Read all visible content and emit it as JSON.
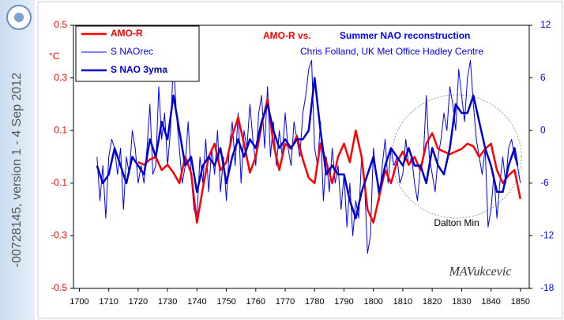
{
  "chart_data": {
    "type": "line",
    "title_parts": [
      "AMO-R  vs.",
      "Summer NAO reconstruction"
    ],
    "subtitle": "Chris Folland, UK Met Office Hadley Centre",
    "y_label": "°C",
    "annotations": [
      "Dalton Min",
      "MAVukcevic"
    ],
    "side_text": "-00728145, version 1 - 4 Sep 2012",
    "xlim": [
      1698,
      1853
    ],
    "xticks": [
      1700,
      1710,
      1720,
      1730,
      1740,
      1750,
      1760,
      1770,
      1780,
      1790,
      1800,
      1810,
      1820,
      1830,
      1840,
      1850
    ],
    "ylim": [
      -0.5,
      0.5
    ],
    "yticks": [
      -0.5,
      -0.3,
      -0.1,
      0.1,
      0.3,
      0.5
    ],
    "y2lim": [
      -18,
      12
    ],
    "y2ticks": [
      -18,
      -12,
      -6,
      0,
      6,
      12
    ],
    "series": [
      {
        "name": "AMO-R",
        "color": "#ff0000",
        "x": [
          1720,
          1722,
          1724,
          1726,
          1728,
          1730,
          1732,
          1734,
          1736,
          1738,
          1740,
          1742,
          1744,
          1746,
          1748,
          1750,
          1752,
          1754,
          1756,
          1758,
          1760,
          1762,
          1764,
          1766,
          1768,
          1770,
          1772,
          1774,
          1776,
          1778,
          1780,
          1782,
          1784,
          1786,
          1788,
          1790,
          1792,
          1794,
          1796,
          1798,
          1800,
          1802,
          1804,
          1806,
          1808,
          1810,
          1812,
          1814,
          1816,
          1818,
          1820,
          1822,
          1824,
          1826,
          1828,
          1830,
          1832,
          1834,
          1836,
          1838,
          1840,
          1842,
          1844,
          1846,
          1848,
          1850
        ],
        "values": [
          -0.02,
          -0.03,
          -0.01,
          0.0,
          -0.05,
          -0.03,
          -0.06,
          -0.1,
          0.0,
          -0.06,
          -0.25,
          -0.12,
          0.0,
          0.05,
          -0.05,
          -0.02,
          0.08,
          0.15,
          0.05,
          -0.06,
          0.0,
          0.12,
          0.22,
          0.05,
          -0.05,
          0.05,
          0.03,
          0.08,
          -0.01,
          -0.08,
          -0.1,
          0.05,
          -0.02,
          -0.1,
          0.0,
          0.05,
          -0.02,
          0.1,
          0.0,
          -0.2,
          -0.25,
          -0.15,
          -0.05,
          -0.1,
          -0.02,
          0.02,
          -0.03,
          0.0,
          -0.05,
          0.05,
          0.09,
          0.03,
          0.02,
          0.01,
          0.02,
          0.03,
          0.05,
          0.04,
          0.0,
          0.03,
          0.05,
          -0.05,
          -0.1,
          -0.07,
          -0.05,
          -0.16
        ]
      },
      {
        "name": "S NAOrec",
        "color": "#0000ff",
        "axis": "y2",
        "x": [
          1706,
          1707,
          1708,
          1709,
          1710,
          1711,
          1712,
          1713,
          1714,
          1715,
          1716,
          1717,
          1718,
          1719,
          1720,
          1721,
          1722,
          1723,
          1724,
          1725,
          1726,
          1727,
          1728,
          1729,
          1730,
          1731,
          1732,
          1733,
          1734,
          1735,
          1736,
          1737,
          1738,
          1739,
          1740,
          1741,
          1742,
          1743,
          1744,
          1745,
          1746,
          1747,
          1748,
          1749,
          1750,
          1751,
          1752,
          1753,
          1754,
          1755,
          1756,
          1757,
          1758,
          1759,
          1760,
          1761,
          1762,
          1763,
          1764,
          1765,
          1766,
          1767,
          1768,
          1769,
          1770,
          1771,
          1772,
          1773,
          1774,
          1775,
          1776,
          1777,
          1778,
          1779,
          1780,
          1781,
          1782,
          1783,
          1784,
          1785,
          1786,
          1787,
          1788,
          1789,
          1790,
          1791,
          1792,
          1793,
          1794,
          1795,
          1796,
          1797,
          1798,
          1799,
          1800,
          1801,
          1802,
          1803,
          1804,
          1805,
          1806,
          1807,
          1808,
          1809,
          1810,
          1811,
          1812,
          1813,
          1814,
          1815,
          1816,
          1817,
          1818,
          1819,
          1820,
          1821,
          1822,
          1823,
          1824,
          1825,
          1826,
          1827,
          1828,
          1829,
          1830,
          1831,
          1832,
          1833,
          1834,
          1835,
          1836,
          1837,
          1838,
          1839,
          1840,
          1841,
          1842,
          1843,
          1844,
          1845,
          1846,
          1847,
          1848,
          1849,
          1850
        ],
        "values": [
          -3,
          -8,
          -4,
          -10,
          -3,
          -1,
          -2,
          -5,
          -2,
          -9,
          -3,
          -5,
          0,
          -2,
          -6,
          -4,
          -6,
          -2,
          3,
          -5,
          -4,
          5,
          -1,
          2,
          -4,
          0,
          8,
          2,
          -2,
          -6,
          -4,
          1,
          -5,
          -9,
          -10,
          -3,
          -6,
          -1,
          -7,
          -2,
          -5,
          0,
          -7,
          -3,
          -8,
          -2,
          1,
          -4,
          2,
          -6,
          0,
          -2,
          3,
          -1,
          -4,
          2,
          4,
          -2,
          5,
          -3,
          1,
          -4,
          0,
          -3,
          2,
          -2,
          -4,
          1,
          -1,
          -3,
          2,
          4,
          7,
          8,
          -2,
          -4,
          1,
          -8,
          -3,
          -7,
          -2,
          -6,
          -4,
          -9,
          -5,
          -11,
          -6,
          -12,
          -8,
          -10,
          -3,
          -6,
          -14,
          -12,
          -2,
          -5,
          -8,
          -4,
          -1,
          -6,
          -2,
          -4,
          -3,
          -6,
          -5,
          -1,
          -4,
          -3,
          -6,
          -8,
          -4,
          -3,
          4,
          -3,
          -5,
          -7,
          -3,
          -1,
          2,
          0,
          5,
          3,
          0,
          7,
          4,
          1,
          6,
          8,
          3,
          -1,
          -3,
          -5,
          -2,
          -11,
          -9,
          -5,
          -10,
          -6,
          -3,
          -6,
          -2,
          -1,
          -3,
          -4,
          -6
        ]
      },
      {
        "name": "S NAO 3yma",
        "color": "#0000cc",
        "axis": "y2",
        "x": [
          1706,
          1708,
          1710,
          1712,
          1714,
          1716,
          1718,
          1720,
          1722,
          1724,
          1726,
          1728,
          1730,
          1732,
          1734,
          1736,
          1738,
          1740,
          1742,
          1744,
          1746,
          1748,
          1750,
          1752,
          1754,
          1756,
          1758,
          1760,
          1762,
          1764,
          1766,
          1768,
          1770,
          1772,
          1774,
          1776,
          1778,
          1780,
          1782,
          1784,
          1786,
          1788,
          1790,
          1792,
          1794,
          1796,
          1798,
          1800,
          1802,
          1804,
          1806,
          1808,
          1810,
          1812,
          1814,
          1816,
          1818,
          1820,
          1822,
          1824,
          1826,
          1828,
          1830,
          1832,
          1834,
          1836,
          1838,
          1840,
          1842,
          1844,
          1846,
          1848,
          1849
        ],
        "values": [
          -4,
          -6,
          -5,
          -2,
          -4,
          -6,
          -3,
          -4,
          -5,
          -1,
          -3,
          1,
          -1,
          4,
          0,
          -4,
          -3,
          -7,
          -4,
          -3,
          -4,
          -2,
          -6,
          -3,
          -1,
          -3,
          -1,
          -2,
          1,
          3,
          0,
          -2,
          -1,
          -2,
          -1,
          -1,
          0,
          6,
          0,
          -5,
          -4,
          -5,
          -5,
          -8,
          -10,
          -7,
          -5,
          -3,
          -7,
          -4,
          -2,
          -3,
          -4,
          -2,
          -4,
          -4,
          -6,
          -2,
          -4,
          -5,
          -2,
          3,
          2,
          2,
          4,
          1,
          -2,
          -4,
          -7,
          -7,
          -4,
          -2,
          -4
        ]
      }
    ]
  }
}
